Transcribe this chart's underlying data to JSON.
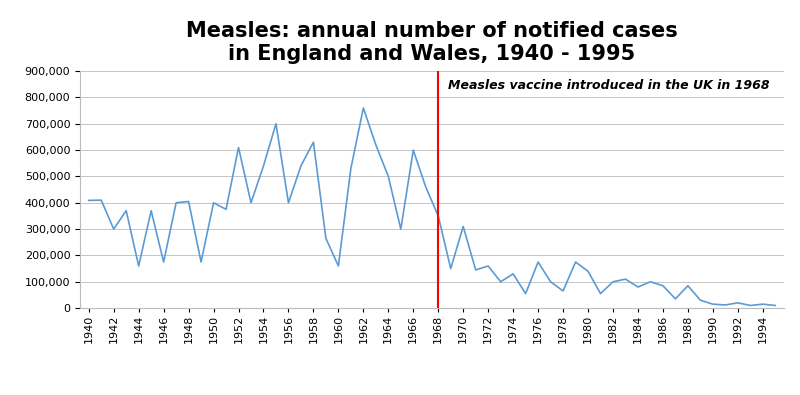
{
  "title_line1": "Measles: annual number of notified cases",
  "title_line2": "in England and Wales, 1940 - 1995",
  "years": [
    1940,
    1941,
    1942,
    1943,
    1944,
    1945,
    1946,
    1947,
    1948,
    1949,
    1950,
    1951,
    1952,
    1953,
    1954,
    1955,
    1956,
    1957,
    1958,
    1959,
    1960,
    1961,
    1962,
    1963,
    1964,
    1965,
    1966,
    1967,
    1968,
    1969,
    1970,
    1971,
    1972,
    1973,
    1974,
    1975,
    1976,
    1977,
    1978,
    1979,
    1980,
    1981,
    1982,
    1983,
    1984,
    1985,
    1986,
    1987,
    1988,
    1989,
    1990,
    1991,
    1992,
    1993,
    1994,
    1995
  ],
  "cases": [
    409000,
    410000,
    300000,
    370000,
    160000,
    370000,
    175000,
    400000,
    405000,
    175000,
    400000,
    375000,
    610000,
    400000,
    540000,
    700000,
    400000,
    540000,
    630000,
    265000,
    160000,
    530000,
    760000,
    620000,
    500000,
    300000,
    600000,
    460000,
    350000,
    150000,
    310000,
    145000,
    160000,
    100000,
    130000,
    55000,
    175000,
    100000,
    65000,
    175000,
    140000,
    55000,
    100000,
    110000,
    80000,
    100000,
    85000,
    35000,
    85000,
    30000,
    15000,
    12000,
    20000,
    10000,
    15000,
    10000
  ],
  "vaccine_year": 1968,
  "vaccine_label": "Measles vaccine introduced in the UK in 1968",
  "line_color": "#5B9BD5",
  "vaccine_line_color": "#FF0000",
  "vaccine_label_color": "#000000",
  "background_color": "#FFFFFF",
  "ylim": [
    0,
    900000
  ],
  "ytick_step": 100000,
  "xtick_years": [
    1940,
    1942,
    1944,
    1946,
    1948,
    1950,
    1952,
    1954,
    1956,
    1958,
    1960,
    1962,
    1964,
    1966,
    1968,
    1970,
    1972,
    1974,
    1976,
    1978,
    1980,
    1982,
    1984,
    1986,
    1988,
    1990,
    1992,
    1994
  ],
  "grid_color": "#BBBBBB",
  "title_fontsize": 15,
  "tick_fontsize": 8,
  "vaccine_label_fontsize": 9,
  "xlim_left": 1939.3,
  "xlim_right": 1995.7
}
